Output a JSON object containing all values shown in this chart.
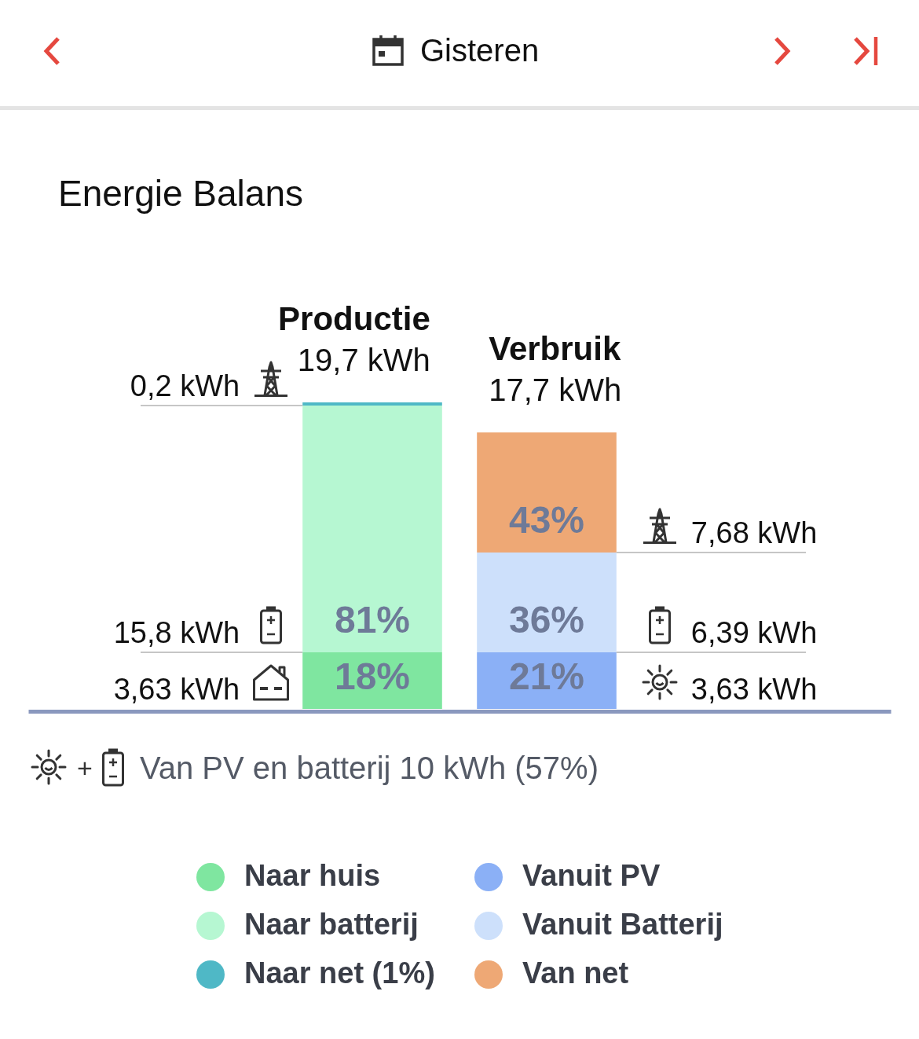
{
  "chart_data": {
    "type": "bar",
    "title": "Energie Balans",
    "categories": [
      "Productie",
      "Verbruik"
    ],
    "totals": [
      "19,7 kWh",
      "17,7 kWh"
    ],
    "stacked": true,
    "series": [
      {
        "name": "Naar huis",
        "color": "#7fe6a0",
        "values": [
          3.63,
          null
        ],
        "value_labels": [
          "3,63 kWh",
          null
        ]
      },
      {
        "name": "Naar batterij",
        "color": "#b6f7d2",
        "values": [
          15.8,
          null
        ],
        "value_labels": [
          "15,8 kWh",
          null
        ]
      },
      {
        "name": "Naar net (1%)",
        "color": "#4fb8c6",
        "values": [
          0.2,
          null
        ],
        "value_labels": [
          "0,2 kWh",
          null
        ]
      },
      {
        "name": "Vanuit PV",
        "color": "#8bb0f6",
        "values": [
          null,
          3.63
        ],
        "value_labels": [
          null,
          "3,63 kWh"
        ]
      },
      {
        "name": "Vanuit Batterij",
        "color": "#cde0fb",
        "values": [
          null,
          6.39
        ],
        "value_labels": [
          null,
          "6,39 kWh"
        ]
      },
      {
        "name": "Van net",
        "color": "#eea875",
        "values": [
          null,
          7.68
        ],
        "value_labels": [
          null,
          "7,68 kWh"
        ]
      }
    ],
    "legend": "bottom",
    "annotations": [
      "Gisteren",
      "+",
      "Van PV en batterij 10 kWh (57%)",
      "18%",
      "81%",
      "21%",
      "36%",
      "43%"
    ]
  }
}
